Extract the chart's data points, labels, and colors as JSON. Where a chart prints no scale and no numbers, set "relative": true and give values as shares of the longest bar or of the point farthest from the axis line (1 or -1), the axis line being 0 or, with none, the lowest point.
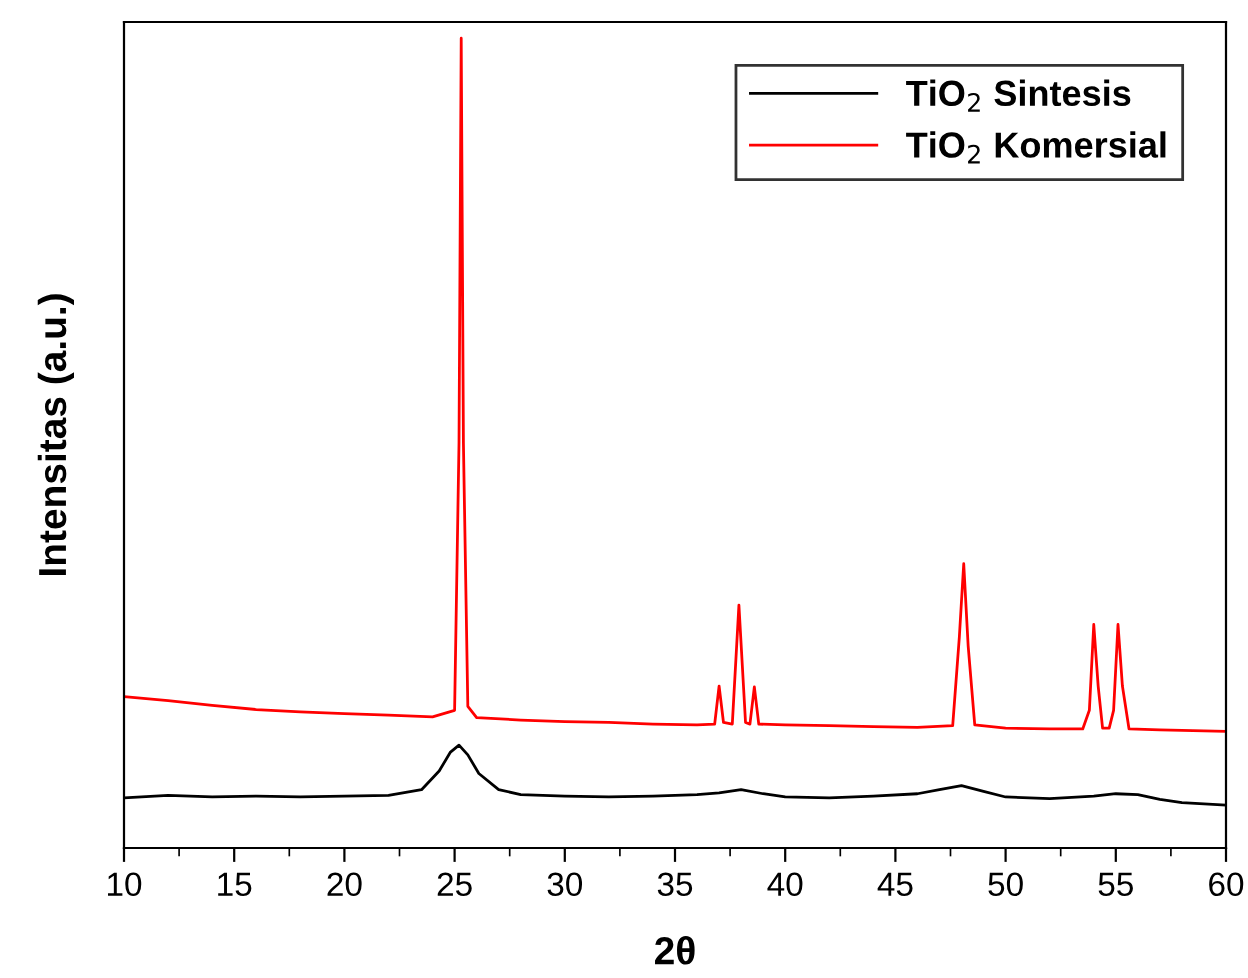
{
  "chart_data": {
    "type": "line",
    "xlabel": "2θ",
    "ylabel": "Intensitas (a.u.)",
    "relative": true,
    "xlim": [
      10,
      60
    ],
    "xticks": [
      10,
      15,
      20,
      25,
      30,
      35,
      40,
      45,
      50,
      55,
      60
    ],
    "legend": "top right",
    "grid": false,
    "series": [
      {
        "name": "TiO$_{2}$ Sintesis",
        "color": "#000000",
        "x": [
          10,
          12,
          14,
          16,
          18,
          20,
          22,
          23.5,
          24.3,
          24.8,
          25.2,
          25.6,
          26.1,
          27,
          28,
          30,
          32,
          34,
          36,
          37,
          38,
          39,
          40,
          42,
          44,
          46,
          47,
          48,
          49,
          50,
          52,
          54,
          55,
          56,
          57,
          58,
          60
        ],
        "values": [
          0.062,
          0.065,
          0.063,
          0.064,
          0.063,
          0.064,
          0.065,
          0.072,
          0.095,
          0.118,
          0.127,
          0.115,
          0.092,
          0.072,
          0.066,
          0.064,
          0.063,
          0.064,
          0.066,
          0.068,
          0.072,
          0.067,
          0.063,
          0.062,
          0.064,
          0.067,
          0.072,
          0.077,
          0.07,
          0.063,
          0.061,
          0.064,
          0.067,
          0.066,
          0.06,
          0.056,
          0.053
        ]
      },
      {
        "name": "TiO$_{2}$ Komersial",
        "color": "#ff0000",
        "x": [
          10,
          12,
          14,
          16,
          18,
          20,
          22,
          24,
          25.0,
          25.2,
          25.3,
          25.4,
          25.6,
          26,
          28,
          30,
          32,
          34,
          36,
          36.8,
          37.0,
          37.2,
          37.6,
          37.9,
          38.2,
          38.4,
          38.6,
          38.8,
          40,
          42,
          44,
          46,
          47.6,
          47.9,
          48.1,
          48.3,
          48.6,
          50,
          52,
          53.5,
          53.8,
          54.0,
          54.2,
          54.4,
          54.7,
          54.9,
          55.1,
          55.3,
          55.6,
          57,
          60
        ],
        "values": [
          0.187,
          0.182,
          0.176,
          0.171,
          0.168,
          0.166,
          0.164,
          0.162,
          0.17,
          0.5,
          1.0,
          0.5,
          0.175,
          0.161,
          0.158,
          0.156,
          0.155,
          0.153,
          0.152,
          0.153,
          0.2,
          0.155,
          0.153,
          0.3,
          0.155,
          0.153,
          0.199,
          0.153,
          0.152,
          0.151,
          0.15,
          0.149,
          0.151,
          0.26,
          0.351,
          0.25,
          0.152,
          0.148,
          0.147,
          0.147,
          0.17,
          0.276,
          0.2,
          0.148,
          0.148,
          0.17,
          0.276,
          0.2,
          0.147,
          0.146,
          0.144
        ]
      }
    ]
  }
}
